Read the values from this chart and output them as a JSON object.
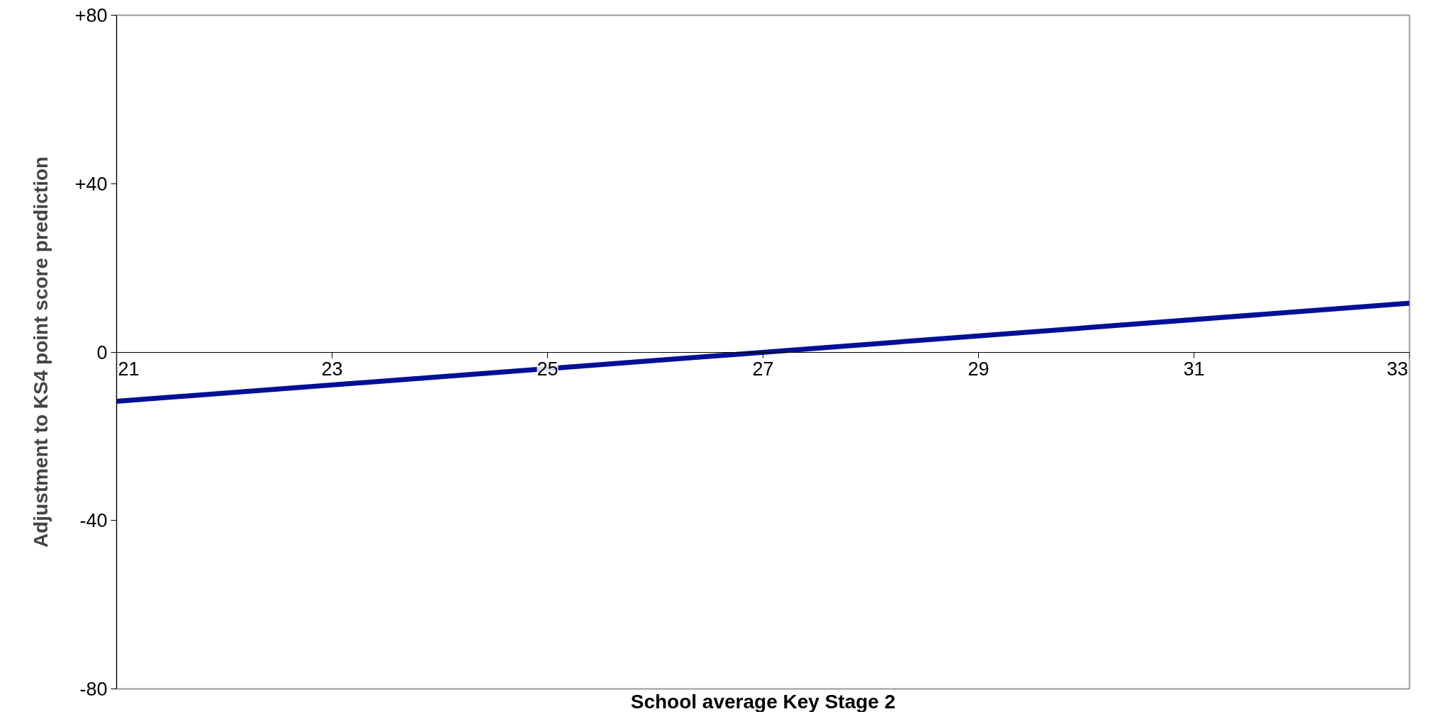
{
  "chart_data": {
    "type": "line",
    "xlabel": "School average Key Stage 2",
    "ylabel": "Adjustment to KS4 point score prediction",
    "x": [
      21,
      33
    ],
    "series": [
      {
        "color": "#000f96",
        "values": [
          -11.7,
          11.6
        ]
      }
    ],
    "xlim": [
      21,
      33
    ],
    "xticks": [
      21,
      23,
      25,
      27,
      29,
      31,
      33
    ],
    "ylim": [
      -80,
      80
    ],
    "yticks": [
      {
        "value": -80,
        "label": "-80"
      },
      {
        "value": -40,
        "label": "-40"
      },
      {
        "value": 0,
        "label": "0"
      },
      {
        "value": 40,
        "label": "+40"
      },
      {
        "value": 80,
        "label": "+80"
      }
    ],
    "grid": false,
    "marker": "none",
    "line_style": "solid"
  }
}
